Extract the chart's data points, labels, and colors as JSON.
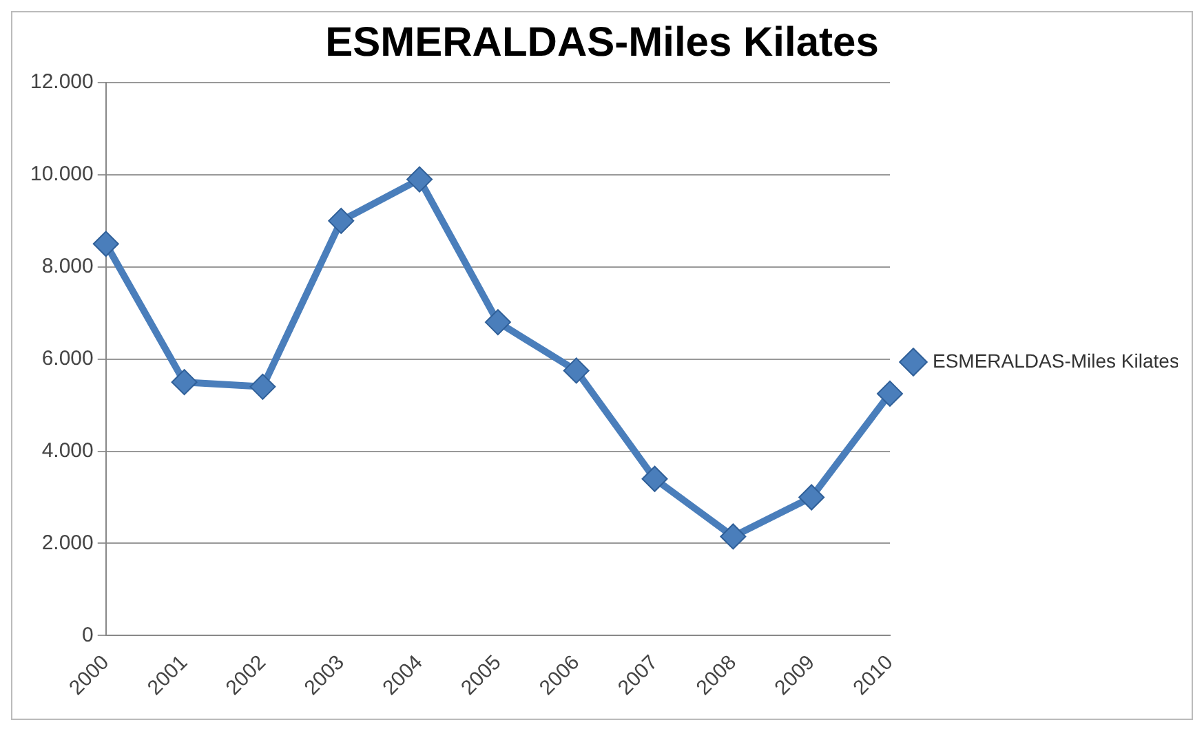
{
  "chart_data": {
    "type": "line",
    "title": "ESMERALDAS-Miles Kilates",
    "categories": [
      "2000",
      "2001",
      "2002",
      "2003",
      "2004",
      "2005",
      "2006",
      "2007",
      "2008",
      "2009",
      "2010"
    ],
    "series": [
      {
        "name": "ESMERALDAS-Miles Kilates",
        "color": "#4a7ebb",
        "values": [
          8500,
          5500,
          5400,
          9000,
          9900,
          6800,
          5750,
          3400,
          2150,
          3000,
          5250
        ]
      }
    ],
    "ylim": [
      0,
      12000
    ],
    "yticks": [
      0,
      {
        "value": 2000,
        "label": "2.000"
      },
      {
        "value": 4000,
        "label": "4.000"
      },
      {
        "value": 6000,
        "label": "6.000"
      },
      {
        "value": 8000,
        "label": "8.000"
      },
      {
        "value": 10000,
        "label": "10.000"
      },
      {
        "value": 12000,
        "label": "12.000"
      }
    ],
    "grid": "y",
    "legend": "right",
    "marker": "diamond",
    "line_style": "solid"
  }
}
